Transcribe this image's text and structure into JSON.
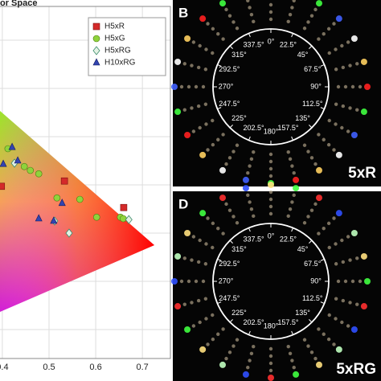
{
  "chart_data": {
    "type": "scatter",
    "title": "or Space",
    "xlim": [
      0.395,
      0.76
    ],
    "xticks": [
      0.4,
      0.5,
      0.6,
      0.7
    ],
    "ylim": [
      0.04,
      0.77
    ],
    "grid": true,
    "legend": "upper right",
    "series": [
      {
        "name": "H5xR",
        "color": "#d42a2a",
        "marker": "square",
        "x": [
          0.398,
          0.533,
          0.66
        ],
        "values": [
          0.397,
          0.408,
          0.353
        ]
      },
      {
        "name": "H5xG",
        "color": "#8fd33c",
        "marker": "circle",
        "x": [
          0.412,
          0.447,
          0.46,
          0.478,
          0.517,
          0.566,
          0.602,
          0.653,
          0.659
        ],
        "values": [
          0.475,
          0.438,
          0.43,
          0.423,
          0.373,
          0.37,
          0.333,
          0.333,
          0.33
        ]
      },
      {
        "name": "H5xRG",
        "color": "#e4f2e4",
        "marker": "diamond",
        "x": [
          0.426,
          0.512,
          0.543,
          0.671
        ],
        "values": [
          0.445,
          0.325,
          0.3,
          0.328
        ]
      },
      {
        "name": "H10xRG",
        "color": "#3344b0",
        "marker": "triangle",
        "x": [
          0.402,
          0.421,
          0.433,
          0.478,
          0.528,
          0.51
        ],
        "values": [
          0.443,
          0.478,
          0.45,
          0.33,
          0.362,
          0.325
        ]
      }
    ]
  },
  "panels": [
    {
      "letter": "B",
      "label": "5xR",
      "angles": [
        "0°",
        "22.5°",
        "45°",
        "67.5°",
        "90°",
        "112.5°",
        "135°",
        "157.5°",
        "180°",
        "202.5°",
        "225°",
        "247.5°",
        "270°",
        "292.5°",
        "315°",
        "337.5°"
      ]
    },
    {
      "letter": "D",
      "label": "5xRG",
      "angles": [
        "0°",
        "22.5°",
        "45°",
        "67.5°",
        "90°",
        "112.5°",
        "135°",
        "157.5°",
        "180°",
        "202.5°",
        "225°",
        "247.5°",
        "270°",
        "292.5°",
        "315°",
        "337.5°"
      ]
    }
  ]
}
